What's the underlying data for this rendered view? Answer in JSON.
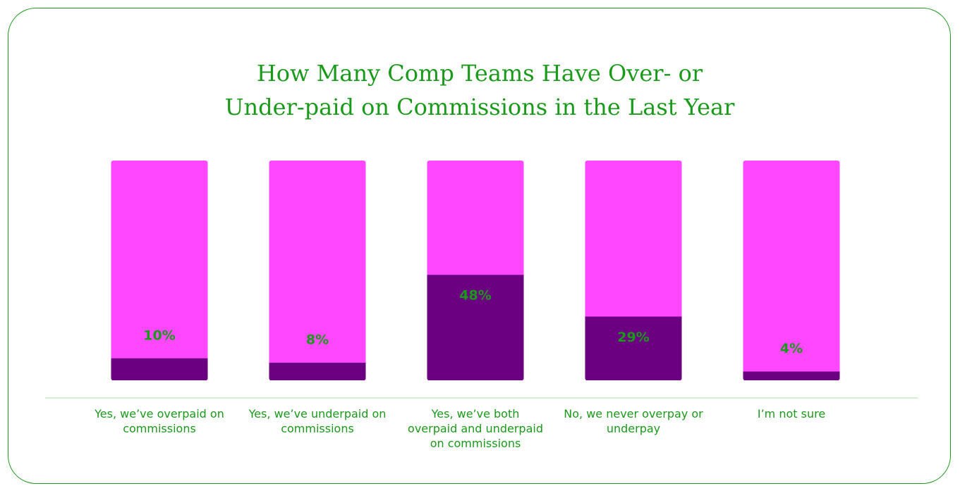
{
  "chart_data": {
    "type": "bar",
    "title": "How Many Comp Teams Have Over- or Under-paid on Commissions in the Last Year",
    "categories": [
      "Yes, we’ve overpaid on commissions",
      "Yes, we’ve underpaid on commissions",
      "Yes, we’ve both overpaid and underpaid on commissions",
      "No, we never overpay or underpay",
      "I’m not sure"
    ],
    "values": [
      10,
      8,
      48,
      29,
      4
    ],
    "value_labels": [
      "10%",
      "8%",
      "48%",
      "29%",
      "4%"
    ],
    "color": "#6b0080",
    "background_color": "#ff47ff",
    "ylim": [
      0,
      100
    ]
  }
}
